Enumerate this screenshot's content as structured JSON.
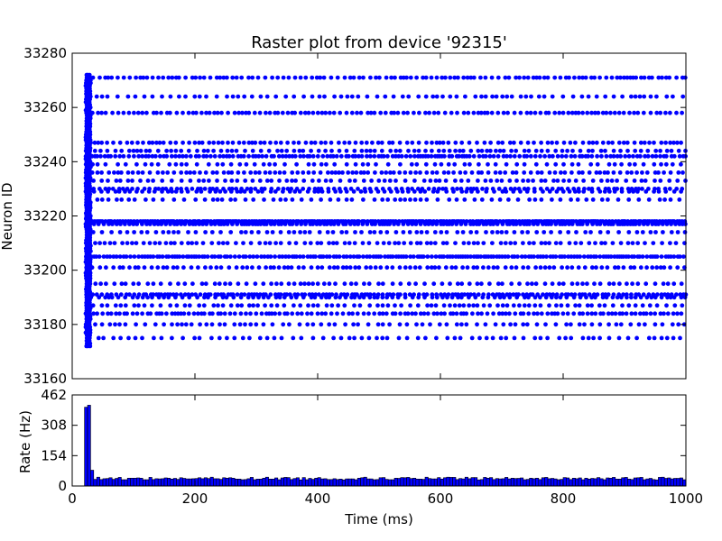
{
  "chart_data": [
    {
      "type": "scatter",
      "title": "Raster plot from device '92315'",
      "xlabel": "",
      "ylabel": "Neuron ID",
      "xlim": [
        0,
        1000
      ],
      "ylim": [
        33160,
        33280
      ],
      "yticks": [
        "33160",
        "33180",
        "33200",
        "33220",
        "33240",
        "33260",
        "33280"
      ],
      "marker_color": "#0000ff",
      "neuron_rates": [
        {
          "id": 33271,
          "isi": 8
        },
        {
          "id": 33264,
          "isi": 12
        },
        {
          "id": 33258,
          "isi": 8
        },
        {
          "id": 33247,
          "isi": 9
        },
        {
          "id": 33244,
          "isi": 10
        },
        {
          "id": 33242,
          "isi": 6
        },
        {
          "id": 33239,
          "isi": 14
        },
        {
          "id": 33236,
          "isi": 9
        },
        {
          "id": 33233,
          "isi": 11
        },
        {
          "id": 33230,
          "isi": 8
        },
        {
          "id": 33229,
          "isi": 10
        },
        {
          "id": 33226,
          "isi": 13
        },
        {
          "id": 33218,
          "isi": 4
        },
        {
          "id": 33217,
          "isi": 6
        },
        {
          "id": 33214,
          "isi": 12
        },
        {
          "id": 33210,
          "isi": 10
        },
        {
          "id": 33205,
          "isi": 5
        },
        {
          "id": 33201,
          "isi": 9
        },
        {
          "id": 33195,
          "isi": 11
        },
        {
          "id": 33191,
          "isi": 6
        },
        {
          "id": 33190,
          "isi": 9
        },
        {
          "id": 33187,
          "isi": 11
        },
        {
          "id": 33184,
          "isi": 7
        },
        {
          "id": 33180,
          "isi": 12
        },
        {
          "id": 33175,
          "isi": 14
        }
      ],
      "initial_burst": {
        "t_start": 22,
        "t_end": 30,
        "id_min": 33172,
        "id_max": 33272
      }
    },
    {
      "type": "bar",
      "xlabel": "Time (ms)",
      "ylabel": "Rate (Hz)",
      "xlim": [
        0,
        1000
      ],
      "ylim": [
        0,
        462
      ],
      "xticks": [
        "0",
        "200",
        "400",
        "600",
        "800",
        "1000"
      ],
      "yticks": [
        "0",
        "154",
        "308",
        "462"
      ],
      "bin_width_ms": 5,
      "bar_color": "#0000ff",
      "values_first_bins": [
        {
          "x": 20,
          "y": 400
        },
        {
          "x": 25,
          "y": 410
        },
        {
          "x": 30,
          "y": 80
        }
      ],
      "baseline_rate": 38
    }
  ]
}
